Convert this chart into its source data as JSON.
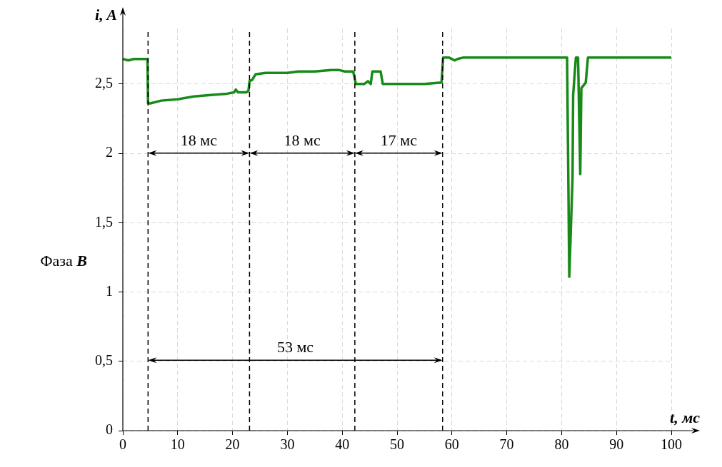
{
  "chart_data": {
    "type": "line",
    "xlabel": "t, мс",
    "ylabel": "i, A",
    "x": [
      0,
      1,
      2,
      3,
      4.5,
      4.6,
      5,
      7,
      10,
      13,
      16,
      19,
      20.3,
      20.6,
      21,
      22.5,
      22.9,
      23.1,
      23.6,
      24.2,
      26,
      30,
      32,
      35,
      38,
      39.5,
      40.5,
      42,
      42.5,
      44,
      44.7,
      45.2,
      45.5,
      47,
      47.4,
      50,
      55,
      58.1,
      58.4,
      59.5,
      60.5,
      61,
      62,
      65,
      70,
      75,
      80,
      81,
      81.4,
      82,
      82.1,
      82.6,
      83,
      83.4,
      83.6,
      84.4,
      84.8,
      90,
      95,
      100
    ],
    "series": [
      {
        "color": "#178a17",
        "values": [
          2.68,
          2.67,
          2.68,
          2.68,
          2.68,
          2.36,
          2.36,
          2.38,
          2.39,
          2.41,
          2.42,
          2.43,
          2.44,
          2.46,
          2.44,
          2.44,
          2.45,
          2.52,
          2.53,
          2.57,
          2.58,
          2.58,
          2.59,
          2.59,
          2.6,
          2.6,
          2.59,
          2.59,
          2.5,
          2.5,
          2.52,
          2.5,
          2.59,
          2.59,
          2.5,
          2.5,
          2.5,
          2.51,
          2.69,
          2.69,
          2.67,
          2.68,
          2.69,
          2.69,
          2.69,
          2.69,
          2.69,
          2.69,
          1.11,
          1.83,
          2.42,
          2.69,
          2.69,
          1.85,
          2.47,
          2.51,
          2.69,
          2.69,
          2.69,
          2.69
        ]
      }
    ],
    "xlim": [
      0,
      100
    ],
    "xticks": [
      0,
      10,
      20,
      30,
      40,
      50,
      60,
      70,
      80,
      90,
      100
    ],
    "ylim": [
      0,
      2.9
    ],
    "yticks": [
      0,
      {
        "value": 0.5,
        "label": "0,5"
      },
      1,
      {
        "value": 1.5,
        "label": "1,5"
      },
      2,
      {
        "value": 2.5,
        "label": "2,5"
      }
    ],
    "grid": true,
    "marker": "none",
    "line_style": "solid",
    "legend": false,
    "ref_lines": [
      {
        "axis": "x",
        "value": 4.6,
        "color": "#000000",
        "line_style": "dashed"
      },
      {
        "axis": "x",
        "value": 23.1,
        "color": "#000000",
        "line_style": "dashed"
      },
      {
        "axis": "x",
        "value": 42.3,
        "color": "#000000",
        "line_style": "dashed"
      },
      {
        "axis": "x",
        "value": 58.3,
        "color": "#000000",
        "line_style": "dashed"
      }
    ],
    "annotations": [
      "18 мс",
      "18 мс",
      "17 мс",
      "53 мс",
      "Фаза B"
    ]
  }
}
